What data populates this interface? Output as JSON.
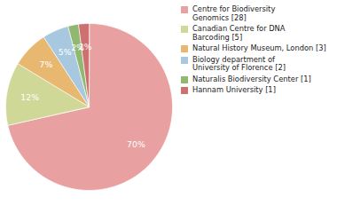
{
  "chart_data": {
    "type": "pie",
    "categories": [
      "Centre for Biodiversity\nGenomics [28]",
      "Canadian Centre for DNA\nBarcoding [5]",
      "Natural History Museum, London [3]",
      "Biology department of\nUniversity of Florence [2]",
      "Naturalis Biodiversity Center [1]",
      "Hannam University [1]"
    ],
    "values": [
      70,
      12,
      7,
      5,
      2,
      2
    ],
    "value_labels": [
      "70%",
      "12%",
      "7%",
      "5%",
      "2%",
      "2%"
    ],
    "colors": [
      "#e8a0a0",
      "#d0d898",
      "#e8b870",
      "#a8c8e0",
      "#90b870",
      "#cc7070"
    ],
    "data_labels": true,
    "legend": "right"
  }
}
